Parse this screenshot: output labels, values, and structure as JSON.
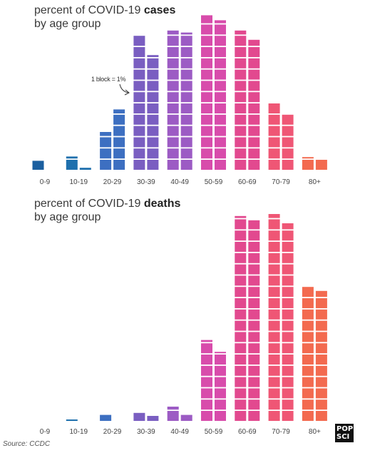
{
  "source": "Source: CCDC",
  "logo": {
    "line1": "POP",
    "line2": "SCI"
  },
  "colors": [
    "#1b5fa0",
    "#1f70ad",
    "#3d6fc1",
    "#7a5ec1",
    "#9c5bc4",
    "#d84cab",
    "#e2498f",
    "#ef5675",
    "#f36a4f"
  ],
  "chart_data": [
    {
      "type": "bar",
      "title_prefix": "percent of COVID-19 ",
      "title_bold": "cases",
      "subtitle": "by age group",
      "annotation": "1 block = 1%",
      "categories": [
        "0-9",
        "10-19",
        "20-29",
        "30-39",
        "40-49",
        "50-59",
        "60-69",
        "70-79",
        "80+"
      ],
      "series": [
        {
          "values": [
            0.9,
            1.2,
            3.4,
            12.0,
            12.4,
            13.8,
            12.4,
            6.0,
            1.1
          ]
        },
        {
          "values": [
            null,
            0.2,
            5.4,
            10.2,
            12.2,
            13.3,
            11.6,
            5.0,
            1.0
          ]
        }
      ]
    },
    {
      "type": "bar",
      "title_prefix": "percent of COVID-19 ",
      "title_bold": "deaths",
      "subtitle": "by age group",
      "categories": [
        "0-9",
        "10-19",
        "20-29",
        "30-39",
        "40-49",
        "50-59",
        "60-69",
        "70-79",
        "80+"
      ],
      "series": [
        {
          "values": [
            null,
            0.1,
            0.6,
            0.8,
            1.3,
            7.2,
            18.2,
            18.4,
            12.0
          ]
        },
        {
          "values": [
            null,
            null,
            null,
            0.5,
            0.6,
            6.1,
            17.9,
            17.6,
            11.6
          ]
        }
      ]
    }
  ]
}
